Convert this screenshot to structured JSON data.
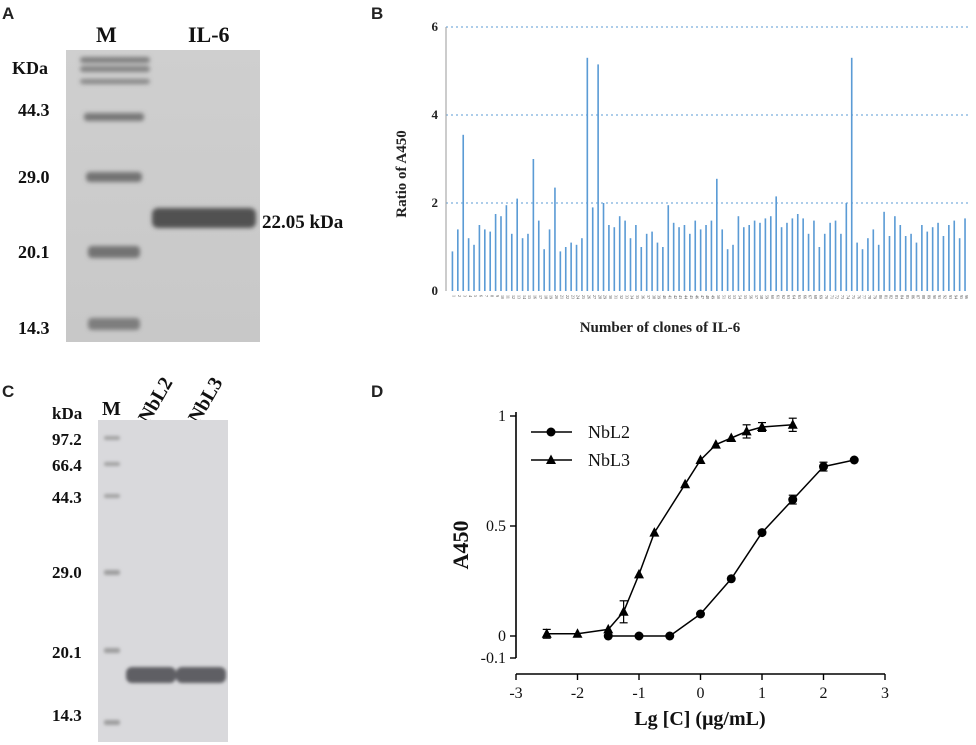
{
  "panels": {
    "a": {
      "letter": "A",
      "lane_headers": [
        "M",
        "IL-6"
      ],
      "unit": "KDa",
      "markers": [
        "44.3",
        "29.0",
        "20.1",
        "14.3"
      ],
      "band_label": "22.05 kDa"
    },
    "b": {
      "letter": "B"
    },
    "c": {
      "letter": "C",
      "lane_headers": [
        "M",
        "NbL2",
        "NbL3"
      ],
      "unit": "kDa",
      "markers": [
        "97.2",
        "66.4",
        "44.3",
        "29.0",
        "20.1",
        "14.3"
      ]
    },
    "d": {
      "letter": "D"
    }
  },
  "colors": {
    "bar": "#5b9bd5",
    "grid": "#5b9bd5",
    "curve": "#000000"
  },
  "chart_data": [
    {
      "type": "bar",
      "xlabel": "Number of clones of IL-6",
      "ylabel": "Ratio of A450",
      "ylim": [
        0,
        6
      ],
      "yticks": [
        0,
        2,
        4,
        6
      ],
      "gridlines": "dotted at 2, 4, 6",
      "categories": [
        "1",
        "2",
        "3",
        "4",
        "5",
        "6",
        "7",
        "8",
        "9",
        "10",
        "11",
        "12",
        "13",
        "14",
        "15",
        "16",
        "17",
        "18",
        "19",
        "20",
        "21",
        "22",
        "23",
        "24",
        "25",
        "26",
        "27",
        "28",
        "29",
        "30",
        "31",
        "32",
        "33",
        "34",
        "35",
        "36",
        "37",
        "38",
        "39",
        "40",
        "41",
        "42",
        "43",
        "44",
        "45",
        "46",
        "47",
        "48",
        "49",
        "50",
        "51",
        "52",
        "53",
        "54",
        "55",
        "56",
        "57",
        "58",
        "59",
        "60",
        "61",
        "62",
        "63",
        "64",
        "65",
        "66",
        "67",
        "68",
        "69",
        "70",
        "71",
        "72",
        "73",
        "74",
        "75",
        "76",
        "77",
        "78",
        "79",
        "80",
        "81",
        "82",
        "83",
        "84",
        "85",
        "86",
        "87",
        "88",
        "89",
        "90",
        "91",
        "92",
        "93",
        "94",
        "95",
        "96"
      ],
      "values": [
        0.9,
        1.4,
        3.55,
        1.2,
        1.05,
        1.5,
        1.4,
        1.35,
        1.75,
        1.7,
        1.95,
        1.3,
        2.1,
        1.2,
        1.3,
        3.0,
        1.6,
        0.95,
        1.4,
        2.35,
        0.9,
        1.0,
        1.1,
        1.05,
        1.2,
        5.3,
        1.9,
        5.15,
        2.0,
        1.5,
        1.45,
        1.7,
        1.6,
        1.2,
        1.5,
        1.0,
        1.3,
        1.35,
        1.1,
        1.0,
        1.95,
        1.55,
        1.45,
        1.5,
        1.3,
        1.6,
        1.4,
        1.5,
        1.6,
        2.55,
        1.4,
        0.95,
        1.05,
        1.7,
        1.45,
        1.5,
        1.6,
        1.55,
        1.65,
        1.7,
        2.15,
        1.45,
        1.55,
        1.65,
        1.75,
        1.65,
        1.3,
        1.6,
        1.0,
        1.3,
        1.55,
        1.6,
        1.3,
        2.0,
        5.3,
        1.1,
        0.95,
        1.2,
        1.4,
        1.05,
        1.8,
        1.25,
        1.7,
        1.5,
        1.25,
        1.3,
        1.1,
        1.5,
        1.35,
        1.45,
        1.55,
        1.25,
        1.5,
        1.6,
        1.2,
        1.65
      ]
    },
    {
      "type": "line",
      "xlabel": "Lg [C] (μg/mL)",
      "ylabel": "A450",
      "xlim": [
        -3,
        3
      ],
      "ylim": [
        -0.1,
        1
      ],
      "xticks": [
        -3,
        -2,
        -1,
        0,
        1,
        2,
        3
      ],
      "yticks": [
        -0.1,
        0,
        0.5,
        1
      ],
      "ytick_labels": [
        "-0.1",
        "0",
        "0.5",
        "1"
      ],
      "legend_position": "top-left",
      "series": [
        {
          "name": "NbL2",
          "marker": "circle",
          "x": [
            -1.5,
            -1.0,
            -0.5,
            0.0,
            0.5,
            1.0,
            1.5,
            2.0,
            2.5
          ],
          "y": [
            0.0,
            0.0,
            0.0,
            0.1,
            0.26,
            0.47,
            0.62,
            0.77,
            0.8
          ],
          "err": [
            0,
            0,
            0,
            0,
            0,
            0,
            0.02,
            0.02,
            0
          ]
        },
        {
          "name": "NbL3",
          "marker": "triangle",
          "x": [
            -2.5,
            -2.0,
            -1.5,
            -1.25,
            -1.0,
            -0.75,
            -0.25,
            0.0,
            0.25,
            0.5,
            0.75,
            1.0,
            1.5
          ],
          "y": [
            0.01,
            0.01,
            0.03,
            0.11,
            0.28,
            0.47,
            0.69,
            0.8,
            0.87,
            0.9,
            0.93,
            0.95,
            0.96
          ],
          "err": [
            0.02,
            0,
            0,
            0.05,
            0,
            0,
            0,
            0,
            0,
            0,
            0.03,
            0.02,
            0.03
          ]
        }
      ]
    }
  ]
}
